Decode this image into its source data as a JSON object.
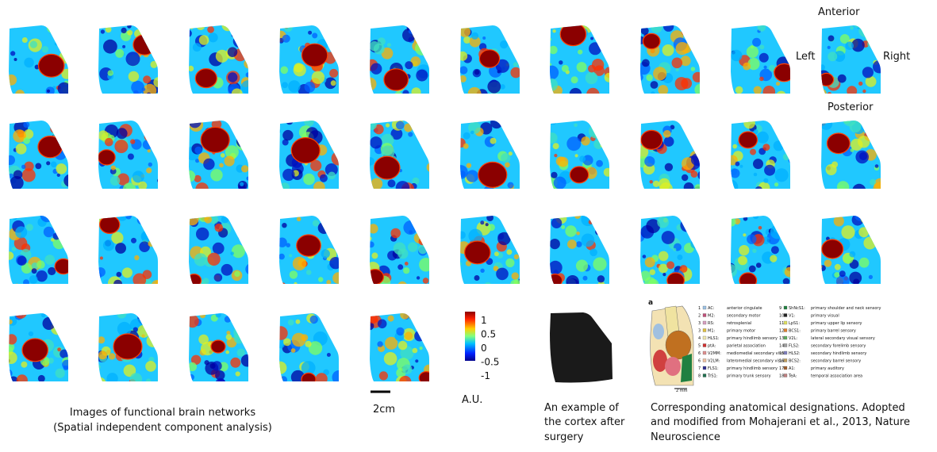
{
  "orientation": {
    "anterior": "Anterior",
    "left": "Left",
    "right": "Right",
    "posterior": "Posterior"
  },
  "colorbar": {
    "ticks": [
      "1",
      "0.5",
      "0",
      "-0.5",
      "-1"
    ],
    "unit": "A.U."
  },
  "scale_bar": "2cm",
  "captions": {
    "networks": [
      "Images of functional brain networks",
      "(Spatial independent component analysis)"
    ],
    "cortex": [
      "An example of",
      "the cortex after",
      "surgery"
    ],
    "anatomy": [
      "Corresponding anatomical designations. Adopted",
      "and modified from Mohajerani et al., 2013, Nature",
      "Neuroscience"
    ]
  },
  "anatomy_panel": {
    "label": "a",
    "scale": "2 mm",
    "entries": [
      {
        "num": "1",
        "abbr": "AC:",
        "desc": "anterior cingulate"
      },
      {
        "num": "2",
        "abbr": "M2:",
        "desc": "secondary motor"
      },
      {
        "num": "3",
        "abbr": "RS:",
        "desc": "retrosplenial"
      },
      {
        "num": "3",
        "abbr": "M1:",
        "desc": "primary motor"
      },
      {
        "num": "4",
        "abbr": "HLS1:",
        "desc": "primary hindlimb sensory"
      },
      {
        "num": "5",
        "abbr": "ptA:",
        "desc": "parietal association"
      },
      {
        "num": "6",
        "abbr": "V2MM:",
        "desc": "mediomedial secondary visual"
      },
      {
        "num": "6",
        "abbr": "V2LM:",
        "desc": "lateromedial secondary visual"
      },
      {
        "num": "7",
        "abbr": "FLS1:",
        "desc": "primary hindlimb sensory"
      },
      {
        "num": "8",
        "abbr": "TrS1:",
        "desc": "primary trunk sensory"
      },
      {
        "num": "9",
        "abbr": "ShNcS1:",
        "desc": "primary shoulder and neck sensory"
      },
      {
        "num": "10",
        "abbr": "V1:",
        "desc": "primary visual"
      },
      {
        "num": "11",
        "abbr": "LpS1:",
        "desc": "primary upper lip sensory"
      },
      {
        "num": "12",
        "abbr": "BCS1:",
        "desc": "primary barrel sensory"
      },
      {
        "num": "13",
        "abbr": "V2L:",
        "desc": "lateral secondary visual sensory"
      },
      {
        "num": "14",
        "abbr": "FLS2:",
        "desc": "secondary forelimb sensory"
      },
      {
        "num": "15",
        "abbr": "HLS2:",
        "desc": "secondary hindlimb sensory"
      },
      {
        "num": "16",
        "abbr": "BCS2:",
        "desc": "secondary barrel sensory"
      },
      {
        "num": "17",
        "abbr": "A1:",
        "desc": "primary auditory"
      },
      {
        "num": "18",
        "abbr": "TeA:",
        "desc": "temporal association area"
      }
    ]
  }
}
